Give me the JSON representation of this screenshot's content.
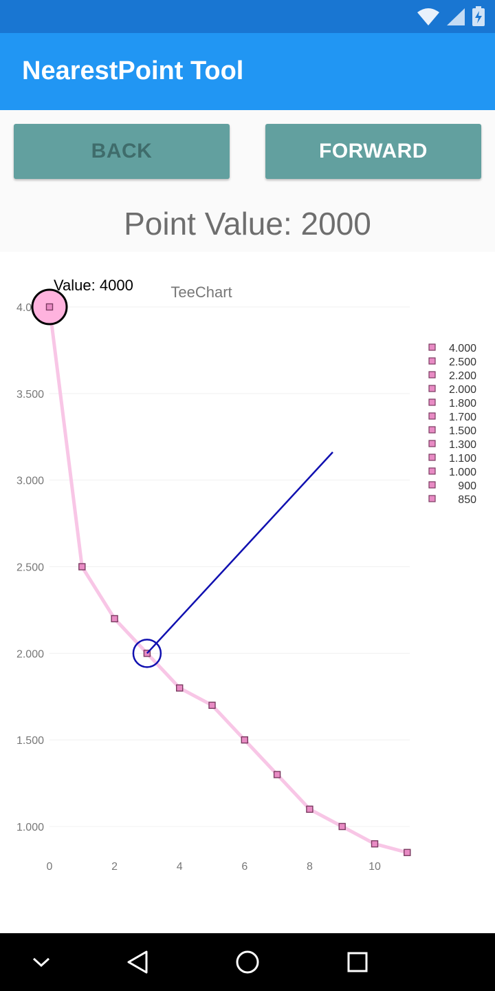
{
  "app": {
    "title": "NearestPoint Tool"
  },
  "toolbar": {
    "back_label": "BACK",
    "forward_label": "FORWARD"
  },
  "point_value_text": "Point Value: 2000",
  "colors": {
    "status_bar": "#1976D2",
    "app_bar": "#2196F3",
    "button": "#62A09F",
    "series_line": "#F8C6E6",
    "marker": "#E88BC4",
    "tool": "#1010B0"
  },
  "status_icons": [
    "wifi-icon",
    "signal-icon",
    "battery-charging-icon"
  ],
  "nav_icons": [
    "chevron-down-icon",
    "back-triangle-icon",
    "home-circle-icon",
    "recents-square-icon"
  ],
  "chart_data": {
    "type": "line",
    "title": "TeeChart",
    "x": [
      0,
      1,
      2,
      3,
      4,
      5,
      6,
      7,
      8,
      9,
      10,
      11
    ],
    "series": [
      {
        "values": [
          4000,
          2500,
          2200,
          2000,
          1800,
          1700,
          1500,
          1300,
          1100,
          1000,
          900,
          850
        ]
      }
    ],
    "x_ticks": [
      "0",
      "2",
      "4",
      "6",
      "8",
      "10"
    ],
    "y_ticks": [
      "1.000",
      "1.500",
      "2.000",
      "2.500",
      "3.000",
      "3.500",
      "4.000"
    ],
    "legend": [
      "4.000",
      "2.500",
      "2.200",
      "2.000",
      "1.800",
      "1.700",
      "1.500",
      "1.300",
      "1.100",
      "1.000",
      "900",
      "850"
    ],
    "legend_placement": "right",
    "grid": true,
    "annotation": "Value: 4000",
    "highlighted_x": 0,
    "nearest_point_x": 3
  }
}
